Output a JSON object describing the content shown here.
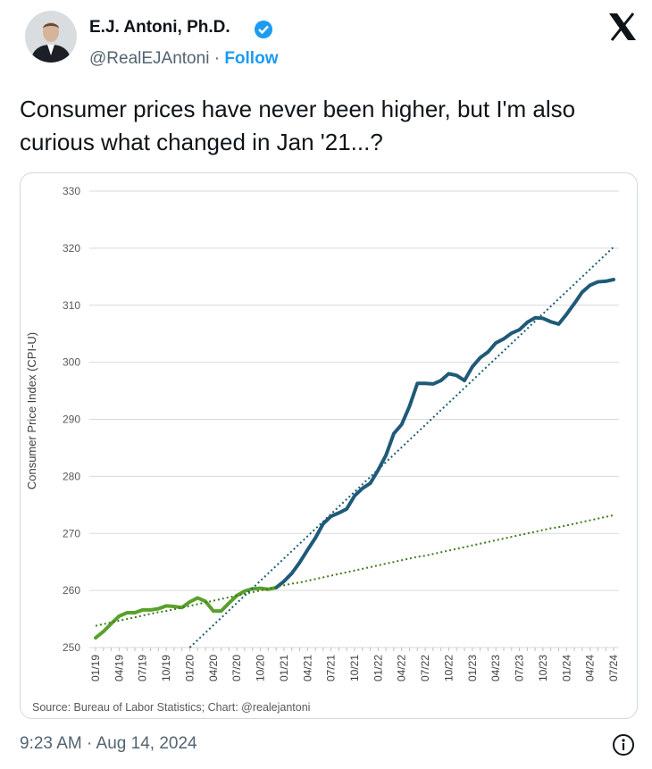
{
  "tweet": {
    "name": "E.J. Antoni, Ph.D.",
    "handle": "@RealEJAntoni",
    "separator": "·",
    "follow": "Follow",
    "text": "Consumer prices have never been higher, but I'm also curious what changed in Jan '21...?",
    "timestamp": "9:23 AM · Aug 14, 2024"
  },
  "chart_data": {
    "type": "line",
    "ylabel": "Consumer Price Index (CPI-U)",
    "source": "Source: Bureau of Labor Statistics; Chart: @realejantoni",
    "ylim": [
      250,
      330
    ],
    "yticks": [
      250,
      260,
      270,
      280,
      290,
      300,
      310,
      320,
      330
    ],
    "grid": true,
    "categories": [
      "01/19",
      null,
      null,
      "04/19",
      null,
      null,
      "07/19",
      null,
      null,
      "10/19",
      null,
      null,
      "01/20",
      null,
      null,
      "04/20",
      null,
      null,
      "07/20",
      null,
      null,
      "10/20",
      null,
      null,
      "01/21",
      null,
      null,
      "04/21",
      null,
      null,
      "07/21",
      null,
      null,
      "10/21",
      null,
      null,
      "01/22",
      null,
      null,
      "04/22",
      null,
      null,
      "07/22",
      null,
      null,
      "10/22",
      null,
      null,
      "01/23",
      null,
      null,
      "04/23",
      null,
      null,
      "07/23",
      null,
      null,
      "10/23",
      null,
      null,
      "01/24",
      null,
      null,
      "04/24",
      null,
      null,
      "07/24"
    ],
    "series": [
      {
        "color": "#5aa02c",
        "style": "solid",
        "values": [
          251.7,
          252.8,
          254.2,
          255.5,
          256.1,
          256.1,
          256.6,
          256.6,
          256.8,
          257.3,
          257.2,
          257.0,
          258.0,
          258.7,
          258.1,
          256.4,
          256.4,
          257.8,
          259.1,
          259.9,
          260.3,
          260.4,
          260.2,
          260.5,
          null,
          null,
          null,
          null,
          null,
          null,
          null,
          null,
          null,
          null,
          null,
          null,
          null,
          null,
          null,
          null,
          null,
          null,
          null,
          null,
          null,
          null,
          null,
          null,
          null,
          null,
          null,
          null,
          null,
          null,
          null,
          null,
          null,
          null,
          null,
          null,
          null,
          null,
          null,
          null,
          null,
          null,
          null
        ]
      },
      {
        "color": "#1f5a78",
        "style": "solid",
        "values": [
          null,
          null,
          null,
          null,
          null,
          null,
          null,
          null,
          null,
          null,
          null,
          null,
          null,
          null,
          null,
          null,
          null,
          null,
          null,
          null,
          null,
          null,
          null,
          260.5,
          261.6,
          263.0,
          264.9,
          267.1,
          269.2,
          271.7,
          273.0,
          273.6,
          274.3,
          276.6,
          277.9,
          278.8,
          281.1,
          283.7,
          287.5,
          289.1,
          292.3,
          296.3,
          296.3,
          296.2,
          296.8,
          298.0,
          297.7,
          296.8,
          299.2,
          300.8,
          301.8,
          303.4,
          304.1,
          305.1,
          305.7,
          307.0,
          307.8,
          307.7,
          307.1,
          306.7,
          308.4,
          310.3,
          312.3,
          313.5,
          314.1,
          314.2,
          314.5
        ]
      },
      {
        "color": "#3f7a1f",
        "style": "dotted",
        "values": [
          253.8,
          254.1,
          254.4,
          254.7,
          255.0,
          255.3,
          255.6,
          255.9,
          256.2,
          256.4,
          256.7,
          257.0,
          257.3,
          257.6,
          257.9,
          258.2,
          258.5,
          258.8,
          259.1,
          259.4,
          259.7,
          260.0,
          260.3,
          260.6,
          260.9,
          261.2,
          261.4,
          261.7,
          262.0,
          262.3,
          262.6,
          262.9,
          263.2,
          263.5,
          263.8,
          264.1,
          264.4,
          264.7,
          265.0,
          265.3,
          265.6,
          265.9,
          266.1,
          266.4,
          266.7,
          267.0,
          267.3,
          267.6,
          267.9,
          268.2,
          268.5,
          268.8,
          269.1,
          269.4,
          269.7,
          270.0,
          270.3,
          270.6,
          270.9,
          271.1,
          271.4,
          271.7,
          272.0,
          272.3,
          272.6,
          272.9,
          273.2
        ]
      },
      {
        "color": "#1f5a78",
        "style": "dotted",
        "values": [
          null,
          null,
          null,
          null,
          null,
          null,
          null,
          null,
          null,
          null,
          null,
          null,
          250.0,
          251.3,
          252.6,
          253.9,
          255.2,
          256.5,
          257.8,
          259.1,
          260.4,
          261.7,
          263.0,
          264.3,
          265.6,
          266.9,
          268.2,
          269.5,
          270.8,
          272.1,
          273.4,
          274.7,
          276.0,
          277.3,
          278.6,
          279.9,
          281.2,
          282.5,
          283.8,
          285.1,
          286.4,
          287.7,
          289.0,
          290.3,
          291.6,
          292.9,
          294.2,
          295.5,
          296.8,
          298.1,
          299.4,
          300.7,
          302.0,
          303.3,
          304.6,
          305.9,
          307.2,
          308.5,
          309.8,
          311.1,
          312.4,
          313.7,
          315.0,
          316.3,
          317.6,
          318.9,
          320.2
        ]
      }
    ]
  }
}
